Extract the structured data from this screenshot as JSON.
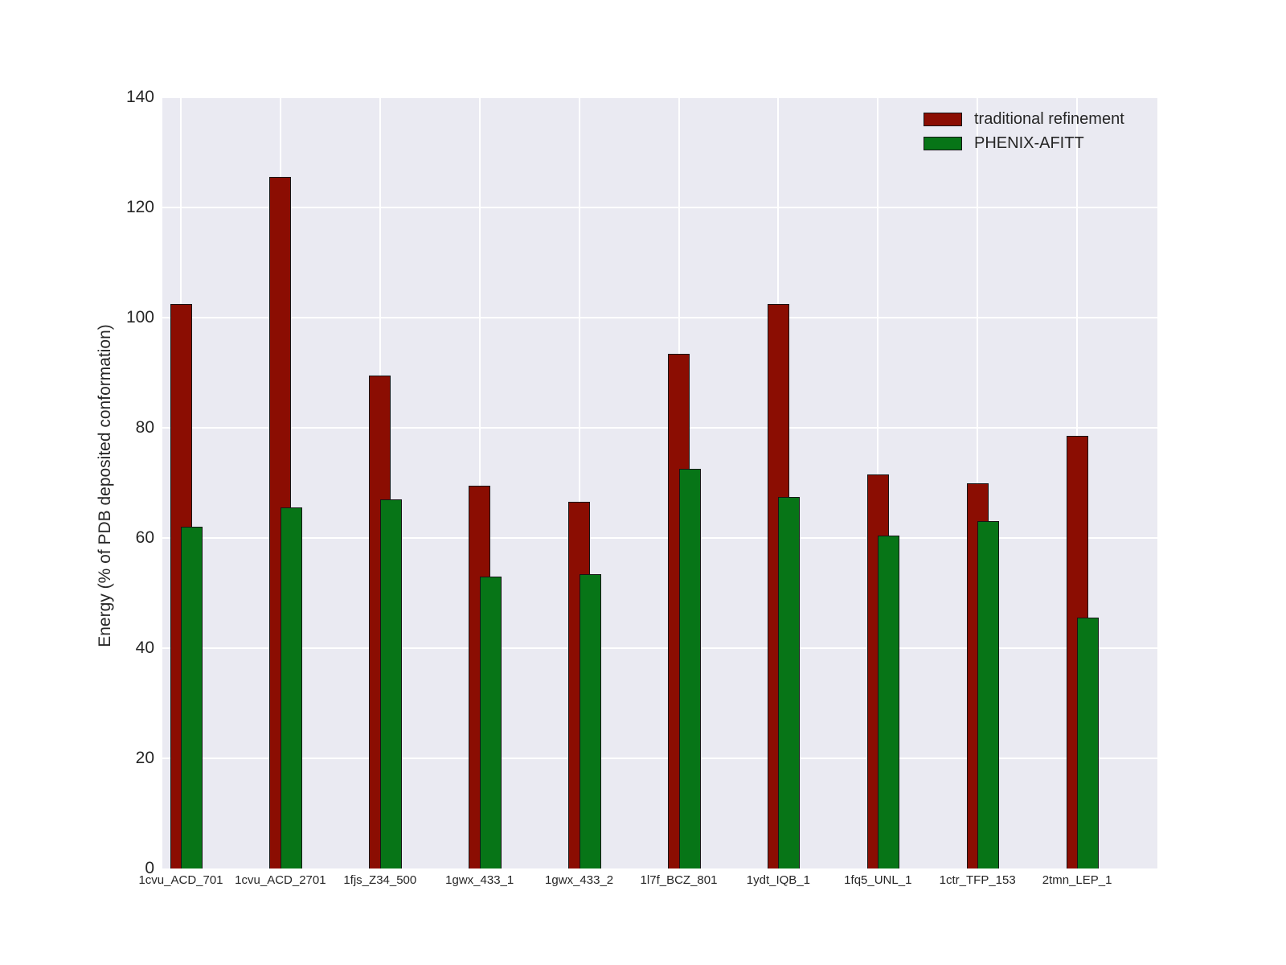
{
  "chart_data": {
    "type": "bar",
    "title": "",
    "xlabel": "",
    "ylabel": "Energy (% of PDB deposited conformation)",
    "ylim": [
      0,
      140
    ],
    "yticks": [
      0,
      20,
      40,
      60,
      80,
      100,
      120,
      140
    ],
    "grid": "on",
    "plot_background": "#eaeaf2",
    "gridline_color": "#ffffff",
    "bar_edge_color": "#161616",
    "legend_position": "upper right",
    "categories": [
      "1cvu_ACD_701",
      "1cvu_ACD_2701",
      "1fjs_Z34_500",
      "1gwx_433_1",
      "1gwx_433_2",
      "1l7f_BCZ_801",
      "1ydt_IQB_1",
      "1fq5_UNL_1",
      "1ctr_TFP_153",
      "2tmn_LEP_1"
    ],
    "series": [
      {
        "name": "traditional refinement",
        "color": "#8b0d02",
        "values": [
          102.5,
          125.5,
          89.5,
          69.5,
          66.5,
          93.5,
          102.5,
          71.5,
          70,
          78.5
        ]
      },
      {
        "name": "PHENIX-AFITT",
        "color": "#077517",
        "values": [
          62,
          65.5,
          67,
          53,
          53.5,
          72.5,
          67.5,
          60.5,
          63,
          45.5
        ]
      }
    ]
  }
}
